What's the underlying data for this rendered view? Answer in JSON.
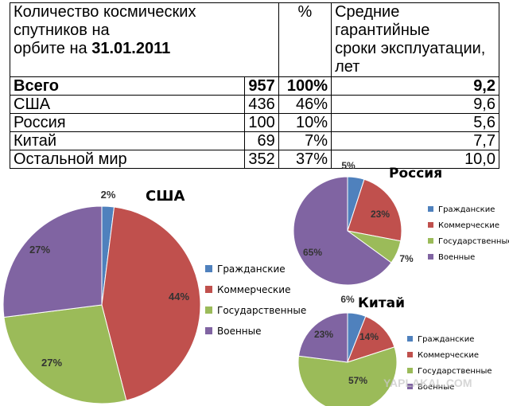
{
  "table": {
    "header": {
      "col1_line1": "Количество космических спутников на",
      "col1_line2_prefix": "орбите на ",
      "col1_line2_date": "31.01.2011",
      "col2": "%",
      "col3_line1": "Средние гарантийные",
      "col3_line2": "сроки эксплуатации, лет"
    },
    "rows": [
      {
        "name": "Всего",
        "count": "957",
        "percent": "100%",
        "lifetime": "9,2"
      },
      {
        "name": "США",
        "count": "436",
        "percent": "46%",
        "lifetime": "9,6"
      },
      {
        "name": "Россия",
        "count": "100",
        "percent": "10%",
        "lifetime": "5,6"
      },
      {
        "name": "Китай",
        "count": "69",
        "percent": "7%",
        "lifetime": "7,7"
      },
      {
        "name": "Остальной мир",
        "count": "352",
        "percent": "37%",
        "lifetime": "10,0"
      }
    ]
  },
  "watermark": "YAPLAKAL.COM",
  "chart_data": [
    {
      "type": "pie",
      "title": "США",
      "categories": [
        "Гражданские",
        "Коммерческие",
        "Государственные",
        "Военные"
      ],
      "values": [
        2,
        44,
        27,
        27
      ],
      "labels": [
        "2%",
        "44%",
        "27%",
        "27%"
      ],
      "colors": [
        "#4f81bd",
        "#c0504d",
        "#9bbb59",
        "#8064a2"
      ],
      "legend": "right"
    },
    {
      "type": "pie",
      "title": "Россия",
      "categories": [
        "Гражданские",
        "Коммерческие",
        "Государственные",
        "Военные"
      ],
      "values": [
        5,
        23,
        7,
        65
      ],
      "labels": [
        "5%",
        "23%",
        "7%",
        "65%"
      ],
      "colors": [
        "#4f81bd",
        "#c0504d",
        "#9bbb59",
        "#8064a2"
      ],
      "legend": "right"
    },
    {
      "type": "pie",
      "title": "Китай",
      "categories": [
        "Гражданские",
        "Коммерческие",
        "Государственные",
        "Военные"
      ],
      "values": [
        6,
        14,
        57,
        23
      ],
      "labels": [
        "6%",
        "14%",
        "57%",
        "23%"
      ],
      "colors": [
        "#4f81bd",
        "#c0504d",
        "#9bbb59",
        "#8064a2"
      ],
      "legend": "right"
    }
  ]
}
